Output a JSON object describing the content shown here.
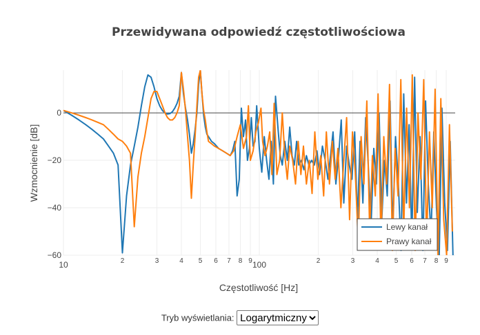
{
  "chart_data": {
    "type": "line",
    "title": "Przewidywana odpowiedź częstotliwościowa",
    "xlabel": "Częstotliwość [Hz]",
    "ylabel": "Wzmocnienie [dB]",
    "x_scale": "log",
    "xlim": [
      10,
      1000
    ],
    "ylim": [
      -60,
      18
    ],
    "y_ticks": [
      0,
      -20,
      -40,
      -60
    ],
    "x_major_ticks": [
      {
        "value": 10,
        "label": "10"
      },
      {
        "value": 100,
        "label": "100"
      }
    ],
    "x_minor_ticks": [
      {
        "value": 20,
        "label": "2"
      },
      {
        "value": 30,
        "label": "3"
      },
      {
        "value": 40,
        "label": "4"
      },
      {
        "value": 50,
        "label": "5"
      },
      {
        "value": 60,
        "label": "6"
      },
      {
        "value": 70,
        "label": "7"
      },
      {
        "value": 80,
        "label": "8"
      },
      {
        "value": 90,
        "label": "9"
      },
      {
        "value": 200,
        "label": "2"
      },
      {
        "value": 300,
        "label": "3"
      },
      {
        "value": 400,
        "label": "4"
      },
      {
        "value": 500,
        "label": "5"
      },
      {
        "value": 600,
        "label": "6"
      },
      {
        "value": 700,
        "label": "7"
      },
      {
        "value": 800,
        "label": "8"
      },
      {
        "value": 900,
        "label": "9"
      }
    ],
    "grid": true,
    "legend_position": "bottom-right",
    "series": [
      {
        "name": "Lewy kanał",
        "color": "#1f77b4",
        "points": [
          [
            10,
            1
          ],
          [
            11,
            -1
          ],
          [
            12,
            -3
          ],
          [
            13,
            -5
          ],
          [
            14,
            -7
          ],
          [
            15,
            -9
          ],
          [
            16,
            -11
          ],
          [
            17,
            -14
          ],
          [
            18,
            -17
          ],
          [
            19,
            -22
          ],
          [
            20,
            -59
          ],
          [
            21,
            -35
          ],
          [
            22,
            -22
          ],
          [
            23,
            -14
          ],
          [
            24,
            -6
          ],
          [
            25,
            3
          ],
          [
            26,
            11
          ],
          [
            27,
            16
          ],
          [
            28,
            15
          ],
          [
            29,
            11
          ],
          [
            30,
            6
          ],
          [
            31,
            3
          ],
          [
            32,
            1
          ],
          [
            33,
            0
          ],
          [
            34,
            -0.5
          ],
          [
            35,
            -0.3
          ],
          [
            36,
            0.5
          ],
          [
            37,
            2
          ],
          [
            38,
            4
          ],
          [
            39,
            7
          ],
          [
            40,
            17
          ],
          [
            41,
            8
          ],
          [
            42,
            2
          ],
          [
            43,
            -3
          ],
          [
            44,
            -9
          ],
          [
            45,
            -17
          ],
          [
            46,
            -13
          ],
          [
            47,
            -7
          ],
          [
            48,
            0
          ],
          [
            49,
            12
          ],
          [
            50,
            18
          ],
          [
            51,
            8
          ],
          [
            52,
            -1
          ],
          [
            53,
            -6
          ],
          [
            54,
            -9
          ],
          [
            55,
            -10
          ],
          [
            57,
            -12
          ],
          [
            59,
            -13
          ],
          [
            62,
            -15
          ],
          [
            65,
            -16
          ],
          [
            68,
            -17
          ],
          [
            71,
            -18
          ],
          [
            73,
            -16
          ],
          [
            75,
            -12
          ],
          [
            77,
            -35
          ],
          [
            79,
            -28
          ],
          [
            81,
            2
          ],
          [
            83,
            -10
          ],
          [
            85,
            -3
          ],
          [
            87,
            -20
          ],
          [
            89,
            -15
          ],
          [
            91,
            -2
          ],
          [
            93,
            -14
          ],
          [
            95,
            -12
          ],
          [
            97,
            3
          ],
          [
            100,
            -15
          ],
          [
            103,
            -25
          ],
          [
            106,
            -10
          ],
          [
            109,
            -20
          ],
          [
            112,
            -28
          ],
          [
            115,
            -12
          ],
          [
            118,
            -30
          ],
          [
            121,
            7
          ],
          [
            125,
            -8
          ],
          [
            128,
            -18
          ],
          [
            131,
            -22
          ],
          [
            135,
            -12
          ],
          [
            139,
            -20
          ],
          [
            143,
            -6
          ],
          [
            147,
            -18
          ],
          [
            151,
            -22
          ],
          [
            155,
            -12
          ],
          [
            159,
            -22
          ],
          [
            164,
            -20
          ],
          [
            169,
            -24
          ],
          [
            174,
            -18
          ],
          [
            179,
            -22
          ],
          [
            185,
            -20
          ],
          [
            191,
            -22
          ],
          [
            197,
            -16
          ],
          [
            203,
            -26
          ],
          [
            210,
            -14
          ],
          [
            217,
            -20
          ],
          [
            224,
            -28
          ],
          [
            231,
            -18
          ],
          [
            238,
            -8
          ],
          [
            246,
            -30
          ],
          [
            254,
            -18
          ],
          [
            262,
            -3
          ],
          [
            270,
            -38
          ],
          [
            279,
            -14
          ],
          [
            288,
            -22
          ],
          [
            297,
            -28
          ],
          [
            307,
            -8
          ],
          [
            317,
            -45
          ],
          [
            327,
            -12
          ],
          [
            338,
            -38
          ],
          [
            349,
            -2
          ],
          [
            360,
            -22
          ],
          [
            372,
            -48
          ],
          [
            384,
            -15
          ],
          [
            396,
            -30
          ],
          [
            409,
            0
          ],
          [
            422,
            -45
          ],
          [
            436,
            -20
          ],
          [
            450,
            -35
          ],
          [
            465,
            5
          ],
          [
            480,
            -50
          ],
          [
            496,
            -10
          ],
          [
            512,
            -28
          ],
          [
            529,
            -58
          ],
          [
            546,
            8
          ],
          [
            564,
            -38
          ],
          [
            582,
            -5
          ],
          [
            601,
            -55
          ],
          [
            621,
            15
          ],
          [
            641,
            -42
          ],
          [
            662,
            -10
          ],
          [
            684,
            -58
          ],
          [
            706,
            5
          ],
          [
            729,
            -30
          ],
          [
            753,
            -52
          ],
          [
            778,
            -8
          ],
          [
            803,
            -40
          ],
          [
            829,
            -60
          ],
          [
            856,
            2
          ],
          [
            884,
            -38
          ],
          [
            913,
            -58
          ],
          [
            943,
            -12
          ],
          [
            974,
            -60
          ]
        ]
      },
      {
        "name": "Prawy kanał",
        "color": "#ff7f0e",
        "points": [
          [
            10,
            1
          ],
          [
            11,
            0
          ],
          [
            12,
            -1
          ],
          [
            13,
            -2
          ],
          [
            14,
            -3
          ],
          [
            15,
            -4
          ],
          [
            16,
            -5
          ],
          [
            17,
            -7
          ],
          [
            18,
            -9
          ],
          [
            19,
            -11
          ],
          [
            20,
            -12
          ],
          [
            21,
            -14
          ],
          [
            22,
            -17
          ],
          [
            23,
            -48
          ],
          [
            24,
            -27
          ],
          [
            25,
            -17
          ],
          [
            26,
            -10
          ],
          [
            27,
            -2
          ],
          [
            28,
            6
          ],
          [
            29,
            9
          ],
          [
            30,
            9
          ],
          [
            31,
            6
          ],
          [
            32,
            3
          ],
          [
            33,
            0
          ],
          [
            34,
            -2
          ],
          [
            35,
            -3
          ],
          [
            36,
            -3
          ],
          [
            37,
            -2
          ],
          [
            38,
            0
          ],
          [
            39,
            3
          ],
          [
            40,
            17
          ],
          [
            41,
            10
          ],
          [
            42,
            1
          ],
          [
            43,
            -10
          ],
          [
            44,
            -20
          ],
          [
            45,
            -36
          ],
          [
            46,
            -22
          ],
          [
            47,
            -10
          ],
          [
            48,
            3
          ],
          [
            49,
            15
          ],
          [
            50,
            18
          ],
          [
            51,
            8
          ],
          [
            52,
            1
          ],
          [
            53,
            -3
          ],
          [
            54,
            -8
          ],
          [
            55,
            -12
          ],
          [
            57,
            -13
          ],
          [
            59,
            -14
          ],
          [
            62,
            -15
          ],
          [
            65,
            -16
          ],
          [
            68,
            -17
          ],
          [
            71,
            -18
          ],
          [
            74,
            -16
          ],
          [
            77,
            -10
          ],
          [
            80,
            -5
          ],
          [
            83,
            -15
          ],
          [
            86,
            -10
          ],
          [
            88,
            3
          ],
          [
            90,
            -20
          ],
          [
            93,
            -16
          ],
          [
            96,
            -8
          ],
          [
            99,
            -4
          ],
          [
            102,
            2
          ],
          [
            104,
            -12
          ],
          [
            107,
            -18
          ],
          [
            110,
            -14
          ],
          [
            113,
            -8
          ],
          [
            116,
            -26
          ],
          [
            119,
            4
          ],
          [
            123,
            -26
          ],
          [
            127,
            -20
          ],
          [
            131,
            0
          ],
          [
            135,
            -18
          ],
          [
            139,
            -28
          ],
          [
            143,
            -14
          ],
          [
            148,
            -20
          ],
          [
            153,
            -30
          ],
          [
            158,
            -12
          ],
          [
            163,
            -26
          ],
          [
            168,
            -14
          ],
          [
            174,
            -30
          ],
          [
            180,
            -20
          ],
          [
            186,
            -34
          ],
          [
            192,
            -8
          ],
          [
            199,
            -28
          ],
          [
            206,
            -18
          ],
          [
            213,
            -35
          ],
          [
            220,
            -8
          ],
          [
            228,
            -30
          ],
          [
            236,
            -12
          ],
          [
            244,
            -28
          ],
          [
            252,
            -15
          ],
          [
            261,
            -40
          ],
          [
            270,
            -20
          ],
          [
            279,
            -2
          ],
          [
            289,
            -45
          ],
          [
            299,
            -8
          ],
          [
            309,
            -25
          ],
          [
            320,
            -55
          ],
          [
            331,
            -10
          ],
          [
            342,
            -30
          ],
          [
            354,
            5
          ],
          [
            366,
            -50
          ],
          [
            378,
            -18
          ],
          [
            391,
            -35
          ],
          [
            404,
            8
          ],
          [
            418,
            -55
          ],
          [
            432,
            -10
          ],
          [
            447,
            -30
          ],
          [
            462,
            12
          ],
          [
            478,
            -58
          ],
          [
            494,
            -15
          ],
          [
            511,
            -35
          ],
          [
            528,
            14
          ],
          [
            546,
            -50
          ],
          [
            565,
            2
          ],
          [
            584,
            -40
          ],
          [
            604,
            16
          ],
          [
            625,
            -58
          ],
          [
            646,
            0
          ],
          [
            668,
            -28
          ],
          [
            691,
            14
          ],
          [
            715,
            -55
          ],
          [
            739,
            -8
          ],
          [
            764,
            -40
          ],
          [
            790,
            10
          ],
          [
            817,
            -60
          ],
          [
            845,
            6
          ],
          [
            874,
            -45
          ],
          [
            904,
            -60
          ],
          [
            935,
            -5
          ],
          [
            967,
            -50
          ]
        ]
      }
    ]
  },
  "controls": {
    "mode_label": "Tryb wyświetlania:",
    "mode_value": "Logarytmiczny",
    "mode_options": [
      "Logarytmiczny"
    ]
  }
}
